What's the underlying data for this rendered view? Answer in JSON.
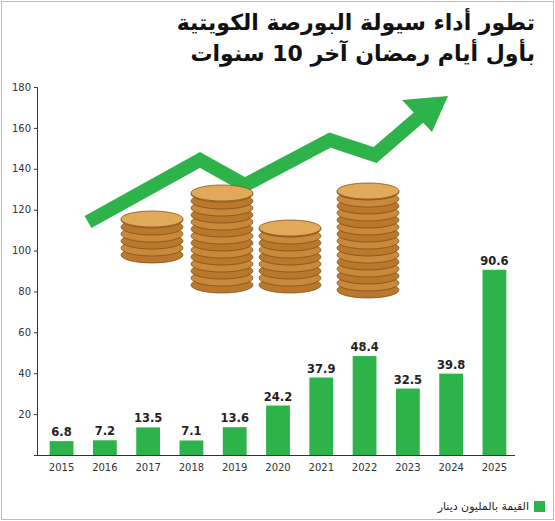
{
  "chart_data": {
    "type": "bar",
    "title": "تطور أداء سيولة البورصة الكويتية بأول أيام رمضان آخر 10 سنوات",
    "categories": [
      "2015",
      "2016",
      "2017",
      "2018",
      "2019",
      "2020",
      "2021",
      "2022",
      "2023",
      "2024",
      "2025"
    ],
    "series": [
      {
        "name": "القيمة بالمليون دينار",
        "color": "#2db34a",
        "values": [
          6.8,
          7.2,
          13.5,
          7.1,
          13.6,
          24.2,
          37.9,
          48.4,
          32.5,
          39.8,
          90.6
        ]
      }
    ],
    "ylim": [
      0,
      180
    ],
    "yticks": [
      20,
      40,
      60,
      80,
      100,
      120,
      140,
      160,
      180
    ],
    "grid": false,
    "legend": "bottom-right",
    "data_labels": true
  }
}
